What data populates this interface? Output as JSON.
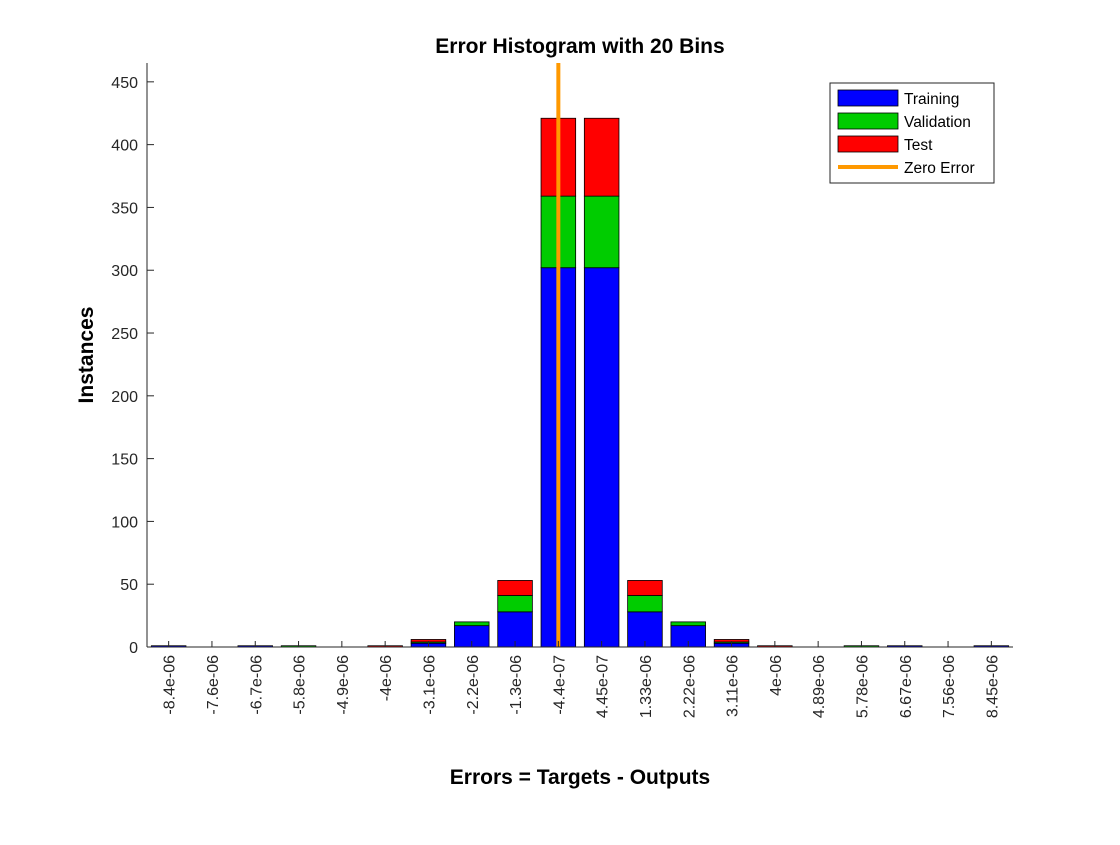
{
  "chart_data": {
    "type": "bar",
    "title": "Error Histogram with 20 Bins",
    "xlabel": "Errors = Targets - Outputs",
    "ylabel": "Instances",
    "ylim": [
      0,
      465
    ],
    "yticks": [
      0,
      50,
      100,
      150,
      200,
      250,
      300,
      350,
      400,
      450
    ],
    "categories": [
      "-8.4e-06",
      "-7.6e-06",
      "-6.7e-06",
      "-5.8e-06",
      "-4.9e-06",
      "-4e-06",
      "-3.1e-06",
      "-2.2e-06",
      "-1.3e-06",
      "-4.4e-07",
      "4.45e-07",
      "1.33e-06",
      "2.22e-06",
      "3.11e-06",
      "4e-06",
      "4.89e-06",
      "5.78e-06",
      "6.67e-06",
      "7.56e-06",
      "8.45e-06"
    ],
    "stacked": true,
    "series": [
      {
        "name": "Training",
        "color": "#0000ff",
        "values": [
          1,
          0,
          1,
          0,
          0,
          0,
          3,
          17,
          28,
          302,
          302,
          28,
          17,
          3,
          0,
          0,
          0,
          1,
          0,
          1
        ]
      },
      {
        "name": "Validation",
        "color": "#00cc00",
        "values": [
          0,
          0,
          0,
          1,
          0,
          0,
          1,
          3,
          13,
          57,
          57,
          13,
          3,
          1,
          0,
          0,
          1,
          0,
          0,
          0
        ]
      },
      {
        "name": "Test",
        "color": "#ff0000",
        "values": [
          0,
          0,
          0,
          0,
          0,
          1,
          2,
          0,
          12,
          62,
          62,
          12,
          0,
          2,
          1,
          0,
          0,
          0,
          0,
          0
        ]
      }
    ],
    "zero_error": {
      "name": "Zero Error",
      "color": "#ff9900",
      "position_bin": 9.5
    },
    "legend_position": "top-right",
    "grid": false
  }
}
